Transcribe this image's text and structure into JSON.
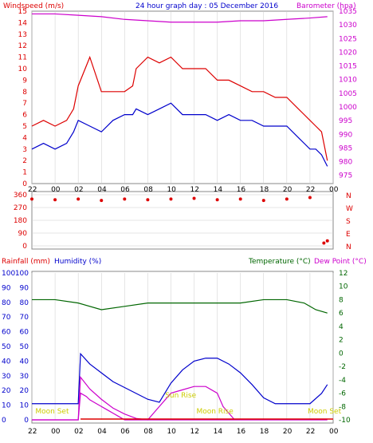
{
  "header": {
    "left": "Windspeed (m/s)",
    "center": "24 hour graph day : 05 December 2016",
    "right": "Barometer (hpa)"
  },
  "bottom_header": {
    "rainfall": "Rainfall (mm)",
    "humidity": "Humidity (%)",
    "temperature": "Temperature (°C)",
    "dewpoint": "Dew Point (°C)"
  },
  "colors": {
    "wind_gust": "#dd0000",
    "wind_avg": "#0000cc",
    "barometer": "#cc00cc",
    "direction": "#dd0000",
    "temperature": "#006600",
    "humidity": "#0000cc",
    "dewpoint_rain": "#cc00cc",
    "rain": "#dd0000",
    "moon_label": "#cccc00"
  },
  "chart_data": [
    {
      "type": "line",
      "panel": "wind-barometer",
      "x_ticks": [
        "22",
        "00",
        "02",
        "04",
        "06",
        "08",
        "10",
        "12",
        "14",
        "16",
        "18",
        "20",
        "22",
        "00"
      ],
      "y_left": {
        "label": "Windspeed (m/s)",
        "ticks": [
          0,
          1,
          2,
          3,
          4,
          5,
          6,
          7,
          8,
          9,
          10,
          11,
          12,
          13,
          14,
          15
        ],
        "range": [
          0,
          15
        ]
      },
      "y_right": {
        "label": "Barometer (hpa)",
        "ticks": [
          975,
          980,
          985,
          990,
          995,
          1000,
          1005,
          1010,
          1015,
          1020,
          1025,
          1030,
          1035
        ],
        "range": [
          972,
          1035
        ]
      },
      "series": [
        {
          "role": "gust",
          "hours": [
            0,
            1,
            2,
            3,
            3.6,
            4,
            5,
            6,
            7,
            8,
            8.7,
            9,
            10,
            11,
            12,
            13,
            14,
            15,
            16,
            17,
            18,
            19,
            20,
            21,
            22,
            23,
            24,
            24.5,
            25,
            25.5
          ],
          "values": [
            5,
            5.5,
            5,
            5.5,
            6.5,
            8.5,
            11,
            8,
            8,
            8,
            8.5,
            10,
            11,
            10.5,
            11,
            10,
            10,
            10,
            9,
            9,
            8.5,
            8,
            8,
            7.5,
            7.5,
            6.5,
            5.5,
            5,
            4.5,
            2
          ]
        },
        {
          "role": "average",
          "hours": [
            0,
            1,
            2,
            3,
            3.6,
            4,
            5,
            6,
            7,
            8,
            8.7,
            9,
            10,
            11,
            12,
            13,
            14,
            15,
            16,
            17,
            18,
            19,
            20,
            21,
            22,
            23,
            24,
            24.5,
            25,
            25.5
          ],
          "values": [
            3,
            3.5,
            3,
            3.5,
            4.5,
            5.5,
            5,
            4.5,
            5.5,
            6,
            6,
            6.5,
            6,
            6.5,
            7,
            6,
            6,
            6,
            5.5,
            6,
            5.5,
            5.5,
            5,
            5,
            5,
            4,
            3,
            3,
            2.5,
            1.5
          ]
        },
        {
          "role": "barometer",
          "hours": [
            0,
            2,
            4,
            6,
            8,
            10,
            12,
            14,
            16,
            18,
            20,
            22,
            24,
            25.5
          ],
          "values": [
            1034,
            1034,
            1033.5,
            1033,
            1032,
            1031.5,
            1031,
            1031,
            1031,
            1031.5,
            1031.5,
            1032,
            1032.5,
            1033
          ]
        }
      ]
    },
    {
      "type": "scatter",
      "panel": "wind-direction",
      "y_ticks": [
        "360",
        "270",
        "180",
        "90",
        "0"
      ],
      "compass": [
        "N",
        "W",
        "S",
        "E",
        "N"
      ],
      "hours": [
        0,
        2,
        4,
        6,
        8,
        10,
        12,
        14,
        16,
        18,
        20,
        22,
        24,
        25.2,
        25.5
      ],
      "values": [
        330,
        325,
        330,
        320,
        330,
        325,
        330,
        335,
        325,
        330,
        320,
        330,
        340,
        20,
        35
      ]
    },
    {
      "type": "line",
      "panel": "rain-humidity-temperature",
      "x_ticks": [
        "22",
        "00",
        "02",
        "04",
        "06",
        "08",
        "10",
        "12",
        "14",
        "16",
        "18",
        "20",
        "22",
        "00"
      ],
      "y_rain": {
        "ticks": [
          0,
          10,
          20,
          30,
          40,
          50,
          60,
          70,
          80,
          90,
          100
        ],
        "range": [
          0,
          100
        ]
      },
      "y_humidity": {
        "ticks": [
          0,
          10,
          20,
          30,
          40,
          50,
          60,
          70,
          80,
          90,
          100
        ],
        "range": [
          0,
          100
        ]
      },
      "y_temp": {
        "ticks": [
          12,
          10,
          8,
          6,
          4,
          2,
          0,
          -2,
          -4,
          -6,
          -8,
          -10
        ],
        "range": [
          -10,
          12
        ]
      },
      "series": [
        {
          "role": "temperature",
          "hours": [
            0,
            2,
            4,
            6,
            8,
            10,
            12,
            14,
            16,
            18,
            20,
            22,
            23.5,
            24.5,
            25.5
          ],
          "values": [
            8,
            8,
            7.5,
            6.5,
            7,
            7.5,
            7.5,
            7.5,
            7.5,
            7.5,
            8,
            8,
            7.5,
            6.5,
            6
          ]
        },
        {
          "role": "humidity",
          "hours": [
            0,
            2,
            4,
            4.2,
            5,
            6,
            7,
            8,
            9,
            10,
            11,
            12,
            13,
            14,
            15,
            16,
            17,
            18,
            19,
            20,
            21,
            22,
            23,
            24,
            25,
            25.5
          ],
          "values": [
            11,
            11,
            11,
            45,
            38,
            32,
            26,
            22,
            18,
            14,
            12,
            25,
            34,
            40,
            42,
            42,
            38,
            32,
            24,
            15,
            11,
            11,
            11,
            11,
            18,
            24
          ]
        },
        {
          "role": "dewpoint",
          "hours": [
            0,
            2,
            4,
            4.2,
            4.7,
            5,
            5.5,
            6,
            6.5,
            7,
            7.5,
            8,
            8.5,
            9,
            9.5,
            10,
            11,
            12,
            13,
            14,
            15,
            16,
            16.5,
            17,
            17.5
          ],
          "values": [
            -10,
            -10,
            -10,
            -6,
            -6.5,
            -7,
            -7.5,
            -8,
            -8.5,
            -9,
            -9.5,
            -10,
            -10,
            -10,
            -10,
            -10,
            -8,
            -6,
            -5.5,
            -5,
            -5,
            -6,
            -8,
            -9,
            -10
          ]
        },
        {
          "role": "rain",
          "hours": [
            0,
            2,
            4,
            4.2,
            5,
            6,
            7,
            8,
            9,
            10,
            11,
            12,
            13,
            14,
            15,
            16,
            17,
            18,
            19,
            20,
            21,
            22,
            23,
            24,
            25,
            25.5
          ],
          "values": [
            0,
            0,
            0,
            29,
            21,
            14,
            8,
            4,
            1,
            0,
            0,
            0,
            0,
            0,
            0,
            0,
            0,
            0,
            0,
            0,
            0,
            0,
            0,
            0,
            0,
            0
          ]
        }
      ],
      "annotations": [
        "Moon Set",
        "Sun Rise",
        "Moon Rise",
        "Moon Set"
      ]
    }
  ]
}
